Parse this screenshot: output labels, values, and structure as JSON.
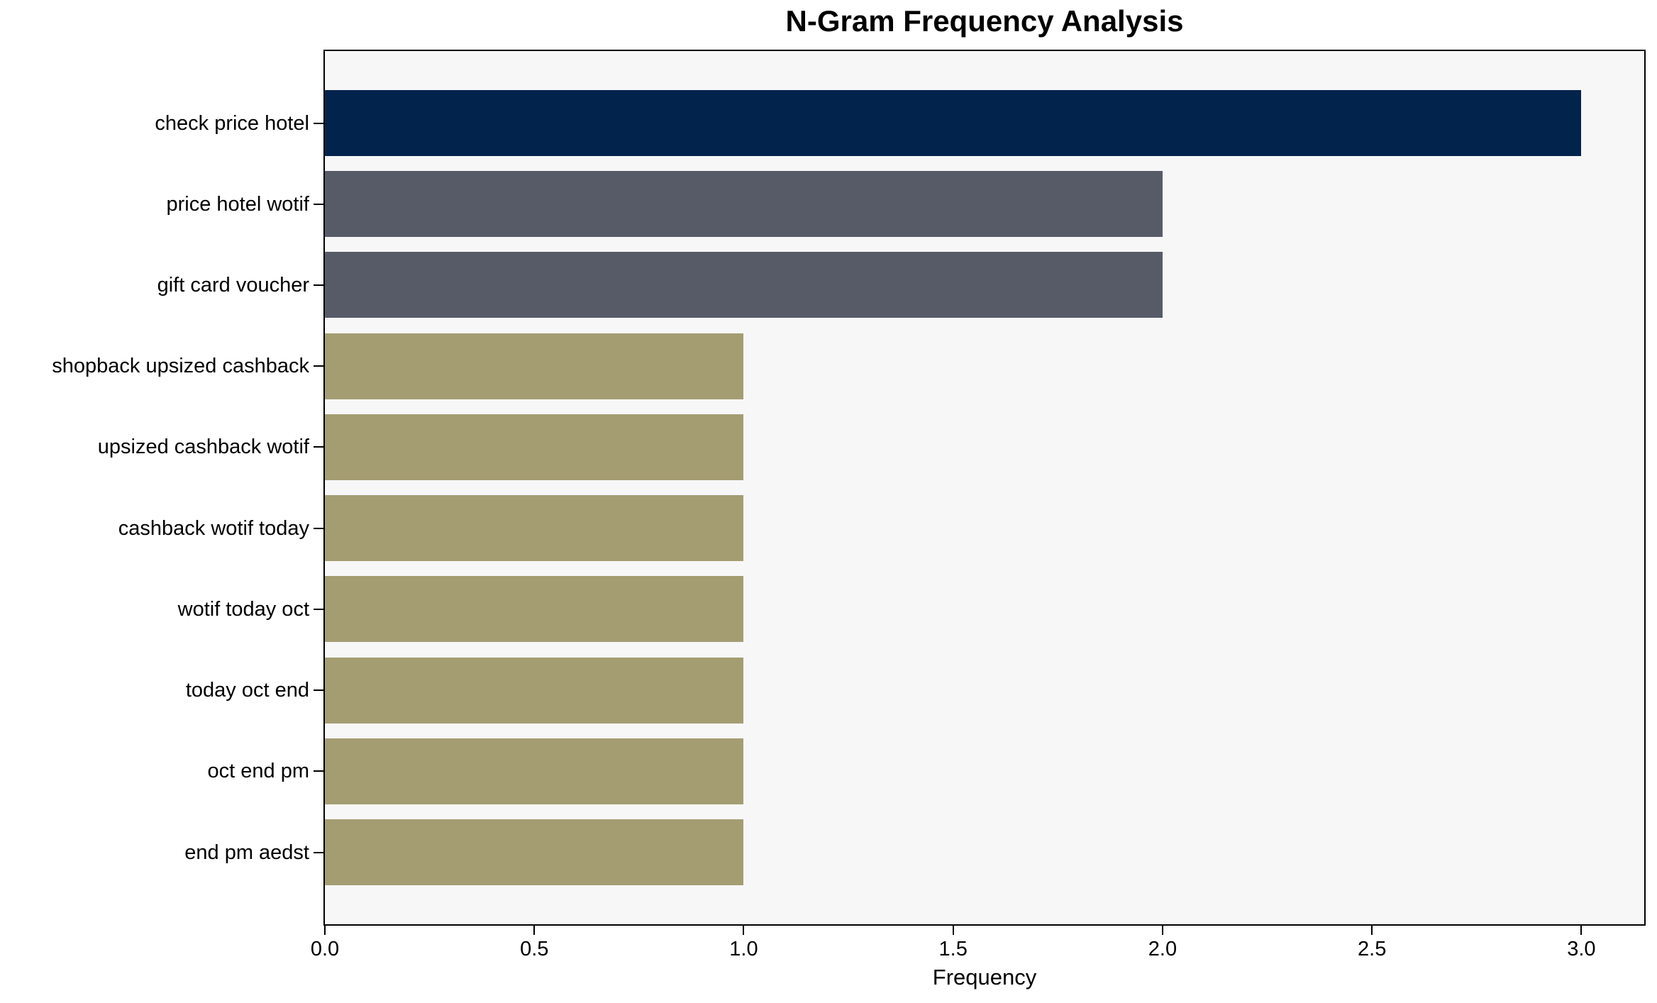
{
  "chart_data": {
    "type": "bar",
    "orientation": "horizontal",
    "title": "N-Gram Frequency Analysis",
    "xlabel": "Frequency",
    "ylabel": "",
    "categories": [
      "check price hotel",
      "price hotel wotif",
      "gift card voucher",
      "shopback upsized cashback",
      "upsized cashback wotif",
      "cashback wotif today",
      "wotif today oct",
      "today oct end",
      "oct end pm",
      "end pm aedst"
    ],
    "values": [
      3,
      2,
      2,
      1,
      1,
      1,
      1,
      1,
      1,
      1
    ],
    "xlim": [
      0,
      3.15
    ],
    "xticks": [
      0.0,
      0.5,
      1.0,
      1.5,
      2.0,
      2.5,
      3.0
    ],
    "xtick_labels": [
      "0.0",
      "0.5",
      "1.0",
      "1.5",
      "2.0",
      "2.5",
      "3.0"
    ],
    "bar_colors": [
      "#02234c",
      "#565b67",
      "#565b67",
      "#a49d72",
      "#a49d72",
      "#a49d72",
      "#a49d72",
      "#a49d72",
      "#a49d72",
      "#a49d72"
    ],
    "grid": false,
    "legend": null,
    "colors": {
      "plot_background": "#f7f7f8",
      "figure_background": "#ffffff",
      "axis_line": "#000000",
      "text": "#000000"
    }
  }
}
